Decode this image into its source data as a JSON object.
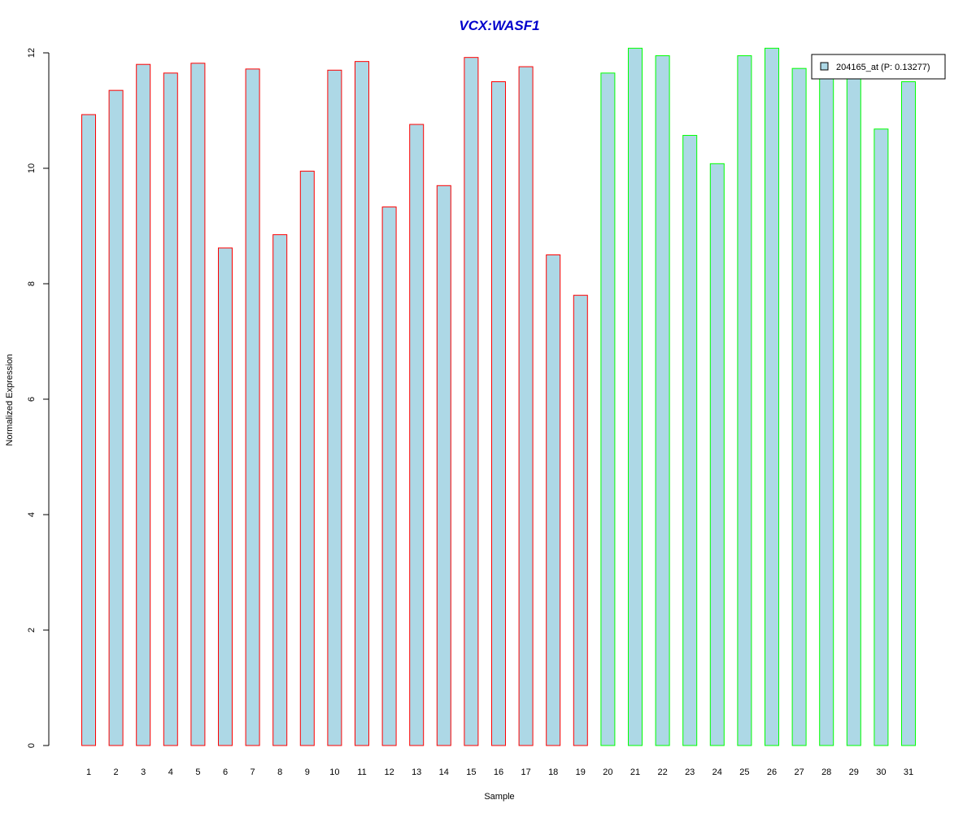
{
  "chart_data": {
    "type": "bar",
    "title": "VCX:WASF1",
    "xlabel": "Sample",
    "ylabel": "Normalized Expression",
    "ylim": [
      0,
      12
    ],
    "yticks": [
      0,
      2,
      4,
      6,
      8,
      10,
      12
    ],
    "categories": [
      "1",
      "2",
      "3",
      "4",
      "5",
      "6",
      "7",
      "8",
      "9",
      "10",
      "11",
      "12",
      "13",
      "14",
      "15",
      "16",
      "17",
      "18",
      "19",
      "20",
      "21",
      "22",
      "23",
      "24",
      "25",
      "26",
      "27",
      "28",
      "29",
      "30",
      "31"
    ],
    "values": [
      10.93,
      11.35,
      11.8,
      11.65,
      11.82,
      8.62,
      11.72,
      8.85,
      9.95,
      11.7,
      11.85,
      9.33,
      10.76,
      9.7,
      11.92,
      11.5,
      11.76,
      8.5,
      7.8,
      11.65,
      12.08,
      11.95,
      10.57,
      10.08,
      11.95,
      12.08,
      11.73,
      11.6,
      11.6,
      10.68,
      11.5
    ],
    "groups": [
      "red",
      "red",
      "red",
      "red",
      "red",
      "red",
      "red",
      "red",
      "red",
      "red",
      "red",
      "red",
      "red",
      "red",
      "red",
      "red",
      "red",
      "red",
      "red",
      "green",
      "green",
      "green",
      "green",
      "green",
      "green",
      "green",
      "green",
      "green",
      "green",
      "green",
      "green"
    ],
    "legend": {
      "label": "204165_at (P: 0.13277)",
      "position": "top-right"
    },
    "grid": false,
    "colors": {
      "fill": "#add8e6",
      "red": "#ff0000",
      "green": "#00ff00",
      "title": "#0000cc",
      "axis": "#000000"
    }
  }
}
